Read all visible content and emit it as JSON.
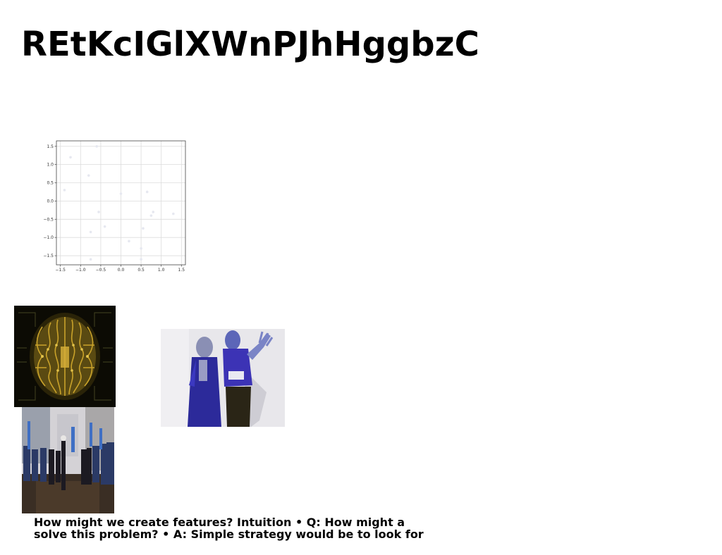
{
  "page": {
    "title": "REtKcIGlXWnPJhHggbzC",
    "caption_line1": "How might we create features? Intuition • Q: How might a",
    "caption_line2": "solve this problem? • A: Simple strategy would be to look for"
  },
  "images": {
    "brain": {
      "icon": "circuit-brain-image"
    },
    "dancers": {
      "icon": "two-dancers-image"
    },
    "parade": {
      "icon": "street-parade-image"
    }
  },
  "chart_data": {
    "type": "scatter",
    "title": "",
    "xlabel": "",
    "ylabel": "",
    "xlim": [
      -1.6,
      1.6
    ],
    "ylim": [
      -1.75,
      1.65
    ],
    "xticks": [
      -1.5,
      -1.0,
      -0.5,
      0.0,
      0.5,
      1.0,
      1.5
    ],
    "xtick_labels": [
      "−1.5",
      "−1.0",
      "−0.5",
      "0.0",
      "0.5",
      "1.0",
      "1.5"
    ],
    "yticks": [
      1.5,
      1.0,
      0.5,
      0.0,
      -0.5,
      -1.0,
      -1.5
    ],
    "ytick_labels": [
      "1.5",
      "1.0",
      "0.5",
      "0.0",
      "−0.5",
      "−1.0",
      "−1.5"
    ],
    "grid": true,
    "point_color": "#e6e8f0",
    "x": [
      -1.4,
      -1.25,
      -0.8,
      -0.6,
      -0.55,
      -0.75,
      -0.4,
      0.0,
      0.2,
      0.65,
      0.8,
      0.5,
      0.55,
      0.75,
      1.3,
      0.5,
      -0.75
    ],
    "y": [
      0.3,
      1.2,
      0.7,
      1.5,
      -0.3,
      -0.85,
      -0.7,
      0.2,
      -1.1,
      0.25,
      -0.3,
      -1.3,
      -0.75,
      -0.4,
      -0.35,
      -1.6,
      -1.6
    ]
  }
}
